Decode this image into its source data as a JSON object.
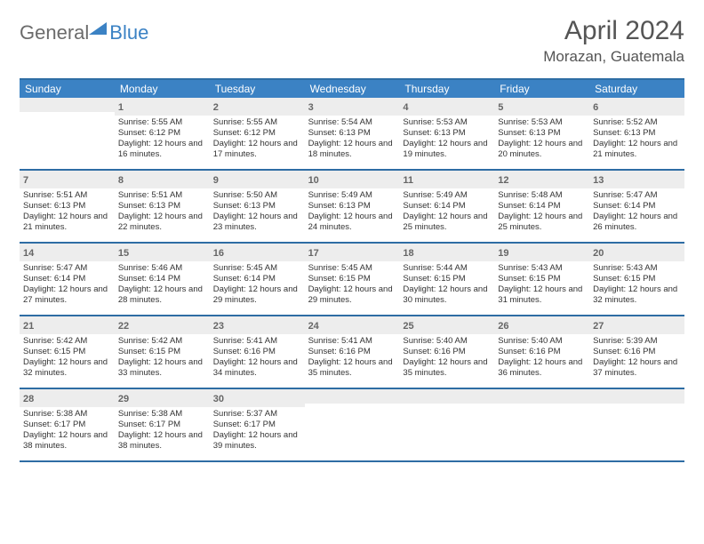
{
  "logo": {
    "part1": "General",
    "part2": "Blue"
  },
  "title": "April 2024",
  "location": "Morazan, Guatemala",
  "dayNames": [
    "Sunday",
    "Monday",
    "Tuesday",
    "Wednesday",
    "Thursday",
    "Friday",
    "Saturday"
  ],
  "header_bg": "#3b82c4",
  "border_color": "#2e6da4",
  "weeks": [
    [
      {
        "blank": true
      },
      {
        "day": "1",
        "sunrise": "5:55 AM",
        "sunset": "6:12 PM",
        "daylight": "12 hours and 16 minutes."
      },
      {
        "day": "2",
        "sunrise": "5:55 AM",
        "sunset": "6:12 PM",
        "daylight": "12 hours and 17 minutes."
      },
      {
        "day": "3",
        "sunrise": "5:54 AM",
        "sunset": "6:13 PM",
        "daylight": "12 hours and 18 minutes."
      },
      {
        "day": "4",
        "sunrise": "5:53 AM",
        "sunset": "6:13 PM",
        "daylight": "12 hours and 19 minutes."
      },
      {
        "day": "5",
        "sunrise": "5:53 AM",
        "sunset": "6:13 PM",
        "daylight": "12 hours and 20 minutes."
      },
      {
        "day": "6",
        "sunrise": "5:52 AM",
        "sunset": "6:13 PM",
        "daylight": "12 hours and 21 minutes."
      }
    ],
    [
      {
        "day": "7",
        "sunrise": "5:51 AM",
        "sunset": "6:13 PM",
        "daylight": "12 hours and 21 minutes."
      },
      {
        "day": "8",
        "sunrise": "5:51 AM",
        "sunset": "6:13 PM",
        "daylight": "12 hours and 22 minutes."
      },
      {
        "day": "9",
        "sunrise": "5:50 AM",
        "sunset": "6:13 PM",
        "daylight": "12 hours and 23 minutes."
      },
      {
        "day": "10",
        "sunrise": "5:49 AM",
        "sunset": "6:13 PM",
        "daylight": "12 hours and 24 minutes."
      },
      {
        "day": "11",
        "sunrise": "5:49 AM",
        "sunset": "6:14 PM",
        "daylight": "12 hours and 25 minutes."
      },
      {
        "day": "12",
        "sunrise": "5:48 AM",
        "sunset": "6:14 PM",
        "daylight": "12 hours and 25 minutes."
      },
      {
        "day": "13",
        "sunrise": "5:47 AM",
        "sunset": "6:14 PM",
        "daylight": "12 hours and 26 minutes."
      }
    ],
    [
      {
        "day": "14",
        "sunrise": "5:47 AM",
        "sunset": "6:14 PM",
        "daylight": "12 hours and 27 minutes."
      },
      {
        "day": "15",
        "sunrise": "5:46 AM",
        "sunset": "6:14 PM",
        "daylight": "12 hours and 28 minutes."
      },
      {
        "day": "16",
        "sunrise": "5:45 AM",
        "sunset": "6:14 PM",
        "daylight": "12 hours and 29 minutes."
      },
      {
        "day": "17",
        "sunrise": "5:45 AM",
        "sunset": "6:15 PM",
        "daylight": "12 hours and 29 minutes."
      },
      {
        "day": "18",
        "sunrise": "5:44 AM",
        "sunset": "6:15 PM",
        "daylight": "12 hours and 30 minutes."
      },
      {
        "day": "19",
        "sunrise": "5:43 AM",
        "sunset": "6:15 PM",
        "daylight": "12 hours and 31 minutes."
      },
      {
        "day": "20",
        "sunrise": "5:43 AM",
        "sunset": "6:15 PM",
        "daylight": "12 hours and 32 minutes."
      }
    ],
    [
      {
        "day": "21",
        "sunrise": "5:42 AM",
        "sunset": "6:15 PM",
        "daylight": "12 hours and 32 minutes."
      },
      {
        "day": "22",
        "sunrise": "5:42 AM",
        "sunset": "6:15 PM",
        "daylight": "12 hours and 33 minutes."
      },
      {
        "day": "23",
        "sunrise": "5:41 AM",
        "sunset": "6:16 PM",
        "daylight": "12 hours and 34 minutes."
      },
      {
        "day": "24",
        "sunrise": "5:41 AM",
        "sunset": "6:16 PM",
        "daylight": "12 hours and 35 minutes."
      },
      {
        "day": "25",
        "sunrise": "5:40 AM",
        "sunset": "6:16 PM",
        "daylight": "12 hours and 35 minutes."
      },
      {
        "day": "26",
        "sunrise": "5:40 AM",
        "sunset": "6:16 PM",
        "daylight": "12 hours and 36 minutes."
      },
      {
        "day": "27",
        "sunrise": "5:39 AM",
        "sunset": "6:16 PM",
        "daylight": "12 hours and 37 minutes."
      }
    ],
    [
      {
        "day": "28",
        "sunrise": "5:38 AM",
        "sunset": "6:17 PM",
        "daylight": "12 hours and 38 minutes."
      },
      {
        "day": "29",
        "sunrise": "5:38 AM",
        "sunset": "6:17 PM",
        "daylight": "12 hours and 38 minutes."
      },
      {
        "day": "30",
        "sunrise": "5:37 AM",
        "sunset": "6:17 PM",
        "daylight": "12 hours and 39 minutes."
      },
      {
        "blank": true
      },
      {
        "blank": true
      },
      {
        "blank": true
      },
      {
        "blank": true
      }
    ]
  ]
}
